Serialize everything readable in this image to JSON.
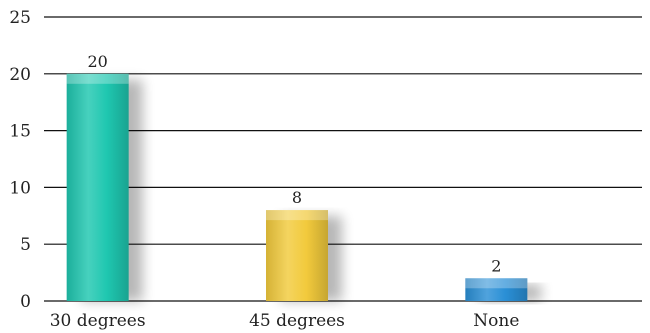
{
  "chart_data": {
    "type": "bar",
    "categories": [
      "30 degrees",
      "45 degrees",
      "None"
    ],
    "values": [
      20,
      8,
      2
    ],
    "data_labels": [
      "20",
      "8",
      "2"
    ],
    "title": "",
    "xlabel": "",
    "ylabel": "",
    "ylim": [
      0,
      25
    ],
    "yticks": [
      0,
      5,
      10,
      15,
      20,
      25
    ],
    "grid": true,
    "legend": "none",
    "colors": [
      "#1fc7b0",
      "#f2ca3c",
      "#2a8fd6"
    ]
  }
}
